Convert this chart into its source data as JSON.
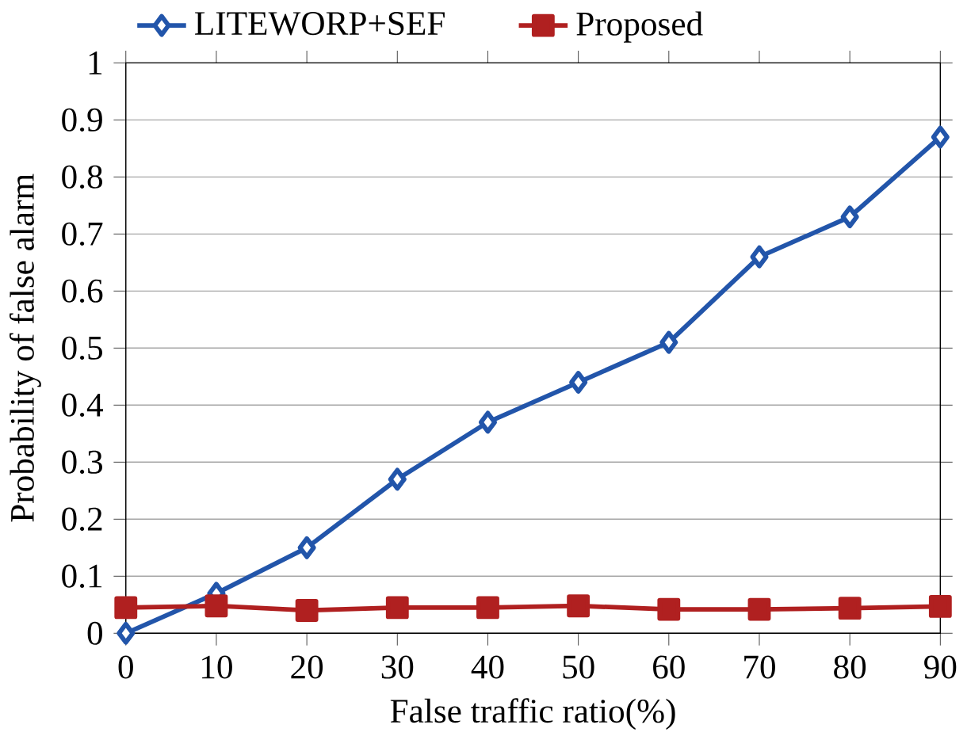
{
  "chart_data": {
    "type": "line",
    "xlabel": "False traffic ratio(%)",
    "ylabel": "Probability of false alarm",
    "x": [
      0,
      10,
      20,
      30,
      40,
      50,
      60,
      70,
      80,
      90
    ],
    "series": [
      {
        "name": "LITEWORP+SEF",
        "color": "#2255aa",
        "marker": "diamond",
        "values": [
          0,
          0.07,
          0.15,
          0.27,
          0.37,
          0.44,
          0.51,
          0.66,
          0.73,
          0.87
        ]
      },
      {
        "name": "Proposed",
        "color": "#b02020",
        "marker": "square",
        "values": [
          0.045,
          0.048,
          0.04,
          0.045,
          0.045,
          0.048,
          0.042,
          0.042,
          0.044,
          0.047
        ]
      }
    ],
    "xlim": [
      0,
      90
    ],
    "xticks": [
      0,
      10,
      20,
      30,
      40,
      50,
      60,
      70,
      80,
      90
    ],
    "ylim": [
      0,
      1
    ],
    "yticks": [
      0,
      0.1,
      0.2,
      0.3,
      0.4,
      0.5,
      0.6,
      0.7,
      0.8,
      0.9,
      1
    ],
    "grid": "y",
    "legend": "top left",
    "line_style": "solid"
  }
}
